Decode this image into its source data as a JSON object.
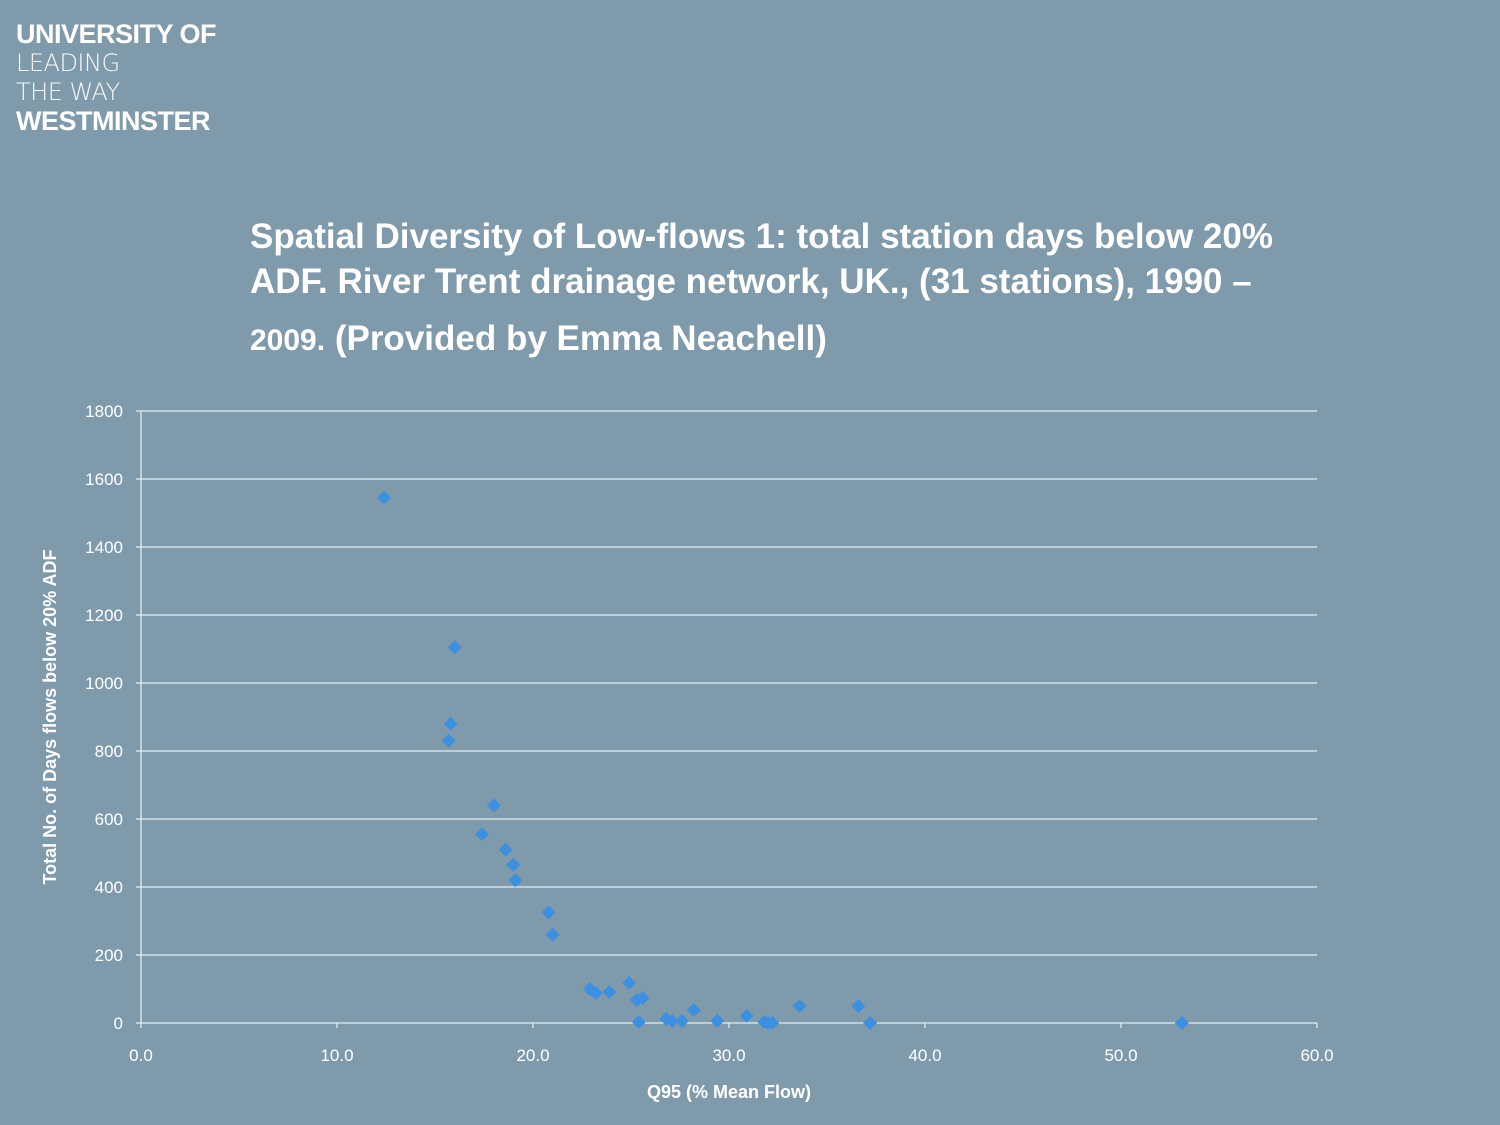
{
  "logo": {
    "line1": "UNIVERSITY OF",
    "line2": "LEADING",
    "line3": "THE WAY",
    "line4": "WESTMINSTER"
  },
  "title": {
    "line1": "Spatial Diversity of Low-flows  1: total station days below 20%",
    "line2": "ADF. River Trent drainage network, UK., (31 stations), 1990 –",
    "line3_year": "2009.",
    "line3_rest": "(Provided by Emma Neachell)"
  },
  "chart_data": {
    "type": "scatter",
    "title": "Spatial Diversity of Low-flows  1: total station days below 20% ADF. River Trent drainage network, UK., (31 stations), 1990 – 2009. (Provided by Emma Neachell)",
    "xlabel": "Q95 (% Mean Flow)",
    "ylabel": "Total No. of Days flows below 20% ADF",
    "xlim": [
      0,
      60
    ],
    "ylim": [
      0,
      1800
    ],
    "xticks": [
      "0.0",
      "10.0",
      "20.0",
      "30.0",
      "40.0",
      "50.0",
      "60.0"
    ],
    "yticks": [
      "0",
      "200",
      "400",
      "600",
      "800",
      "1000",
      "1200",
      "1400",
      "1600",
      "1800"
    ],
    "grid": "horizontal",
    "marker_color": "#3d8fe0",
    "points": [
      [
        12.4,
        1545
      ],
      [
        16.0,
        1105
      ],
      [
        15.8,
        880
      ],
      [
        15.7,
        830
      ],
      [
        18.0,
        640
      ],
      [
        17.4,
        555
      ],
      [
        18.6,
        510
      ],
      [
        19.0,
        465
      ],
      [
        19.1,
        420
      ],
      [
        20.8,
        325
      ],
      [
        21.0,
        260
      ],
      [
        22.9,
        100
      ],
      [
        23.2,
        88
      ],
      [
        23.9,
        91
      ],
      [
        24.9,
        118
      ],
      [
        25.3,
        68
      ],
      [
        25.6,
        74
      ],
      [
        25.4,
        3
      ],
      [
        26.8,
        12
      ],
      [
        27.1,
        6
      ],
      [
        27.6,
        6
      ],
      [
        28.2,
        38
      ],
      [
        29.4,
        6
      ],
      [
        30.9,
        21
      ],
      [
        31.8,
        3
      ],
      [
        32.0,
        0
      ],
      [
        32.2,
        0
      ],
      [
        33.6,
        50
      ],
      [
        36.6,
        50
      ],
      [
        37.2,
        0
      ],
      [
        53.1,
        0
      ]
    ]
  }
}
